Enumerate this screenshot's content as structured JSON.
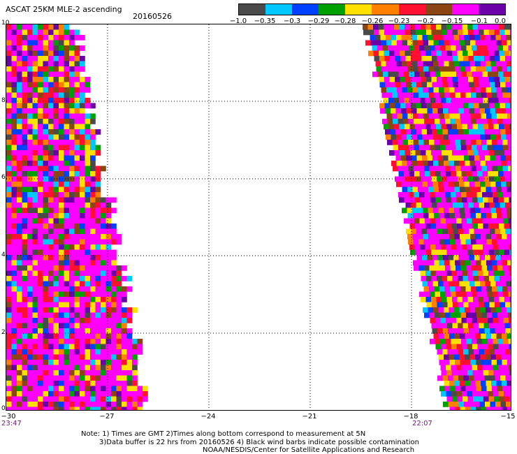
{
  "header": {
    "title": "ASCAT 25KM MLE-2 ascending",
    "date": "20160526"
  },
  "colorbar": {
    "colors": [
      "#4a4a4a",
      "#00c8ff",
      "#0040ff",
      "#00a000",
      "#ffe000",
      "#ff8000",
      "#ff1030",
      "#8b4513",
      "#ff00ff",
      "#6a00a8"
    ],
    "labels": [
      "−1.0",
      "−0.35",
      "−0.3",
      "−0.29",
      "−0.28",
      "−0.26",
      "−0.23",
      "−0.2",
      "−0.15",
      "−0.1",
      "0.0"
    ]
  },
  "map": {
    "x_ticks": [
      "−30",
      "−27",
      "−24",
      "−21",
      "−18",
      "−15"
    ],
    "y_ticks": [
      "10",
      "8",
      "6",
      "4",
      "2",
      "0"
    ],
    "time_left": "23:47",
    "time_right": "22:07"
  },
  "footer": {
    "note1": "Note: 1) Times are GMT 2)Times along bottom correspond to measurement at 5N",
    "note2": "3)Data buffer is 22 hrs from 20160526 4) Black wind barbs indicate possible contamination",
    "credit": "NOAA/NESDIS/Center for Satellite Applications and Research"
  }
}
